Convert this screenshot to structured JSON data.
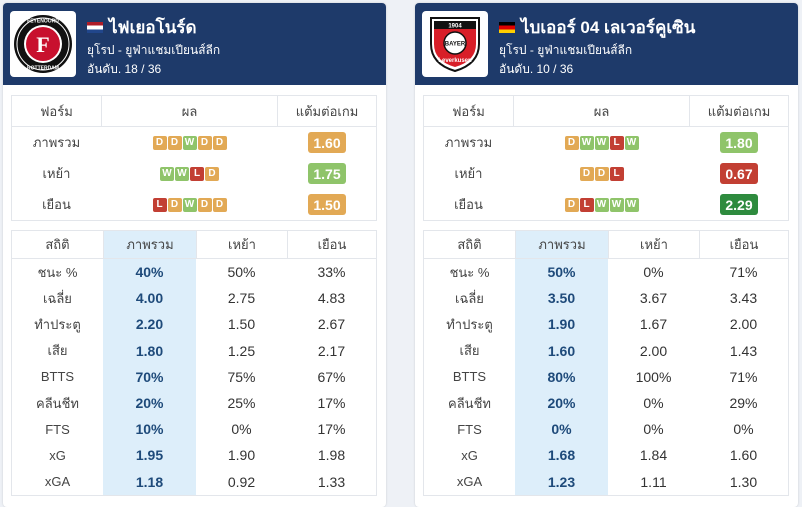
{
  "colors": {
    "header_bg": "#1e3a6a",
    "form_D": "#e2a955",
    "form_W": "#8fc46a",
    "form_L": "#c23f33",
    "ppg_yellow": "#e2a955",
    "ppg_green": "#8fc46a",
    "ppg_red": "#c23f33",
    "ppg_darkgreen": "#2e8b3e",
    "overall_highlight": "#ddeefa"
  },
  "teams": [
    {
      "name": "ไฟเยอโนร์ด",
      "flag": "netherlands-flag",
      "league": "ยุโรป - ยูฟ่าแชมเปียนส์ลีก",
      "rank": "อันดับ. 18 / 36",
      "logo": {
        "name": "feyenoord-logo",
        "initial": "F",
        "ring_text_top": "FEYENOORD",
        "ring_text_bottom": "ROTTERDAM"
      },
      "form_headers": [
        "ฟอร์ม",
        "ผล",
        "แต้มต่อเกม"
      ],
      "form_rows": [
        {
          "label": "ภาพรวม",
          "results": [
            "D",
            "D",
            "W",
            "D",
            "D"
          ],
          "ppg": "1.60",
          "ppg_color": "#e2a955"
        },
        {
          "label": "เหย้า",
          "results": [
            "W",
            "W",
            "L",
            "D"
          ],
          "ppg": "1.75",
          "ppg_color": "#8fc46a"
        },
        {
          "label": "เยือน",
          "results": [
            "L",
            "D",
            "W",
            "D",
            "D"
          ],
          "ppg": "1.50",
          "ppg_color": "#e2a955"
        }
      ],
      "stats_headers": [
        "สถิติ",
        "ภาพรวม",
        "เหย้า",
        "เยือน"
      ],
      "stats_rows": [
        {
          "label": "ชนะ %",
          "overall": "40%",
          "home": "50%",
          "away": "33%"
        },
        {
          "label": "เฉลี่ย",
          "overall": "4.00",
          "home": "2.75",
          "away": "4.83"
        },
        {
          "label": "ทำประตู",
          "overall": "2.20",
          "home": "1.50",
          "away": "2.67"
        },
        {
          "label": "เสีย",
          "overall": "1.80",
          "home": "1.25",
          "away": "2.17"
        },
        {
          "label": "BTTS",
          "overall": "70%",
          "home": "75%",
          "away": "67%"
        },
        {
          "label": "คลีนชีท",
          "overall": "20%",
          "home": "25%",
          "away": "17%"
        },
        {
          "label": "FTS",
          "overall": "10%",
          "home": "0%",
          "away": "17%"
        },
        {
          "label": "xG",
          "overall": "1.95",
          "home": "1.90",
          "away": "1.98"
        },
        {
          "label": "xGA",
          "overall": "1.18",
          "home": "0.92",
          "away": "1.33"
        }
      ]
    },
    {
      "name": "ไบเออร์ 04 เลเวอร์คูเซิน",
      "flag": "germany-flag",
      "league": "ยุโรป - ยูฟ่าแชมเปียนส์ลีก",
      "rank": "อันดับ. 10 / 36",
      "logo": {
        "name": "bayer-leverkusen-logo",
        "top_text": "1904",
        "center_text": "BAYER",
        "bottom_text": "Leverkusen"
      },
      "form_headers": [
        "ฟอร์ม",
        "ผล",
        "แต้มต่อเกม"
      ],
      "form_rows": [
        {
          "label": "ภาพรวม",
          "results": [
            "D",
            "W",
            "W",
            "L",
            "W"
          ],
          "ppg": "1.80",
          "ppg_color": "#8fc46a"
        },
        {
          "label": "เหย้า",
          "results": [
            "D",
            "D",
            "L"
          ],
          "ppg": "0.67",
          "ppg_color": "#c23f33"
        },
        {
          "label": "เยือน",
          "results": [
            "D",
            "L",
            "W",
            "W",
            "W"
          ],
          "ppg": "2.29",
          "ppg_color": "#2e8b3e"
        }
      ],
      "stats_headers": [
        "สถิติ",
        "ภาพรวม",
        "เหย้า",
        "เยือน"
      ],
      "stats_rows": [
        {
          "label": "ชนะ %",
          "overall": "50%",
          "home": "0%",
          "away": "71%"
        },
        {
          "label": "เฉลี่ย",
          "overall": "3.50",
          "home": "3.67",
          "away": "3.43"
        },
        {
          "label": "ทำประตู",
          "overall": "1.90",
          "home": "1.67",
          "away": "2.00"
        },
        {
          "label": "เสีย",
          "overall": "1.60",
          "home": "2.00",
          "away": "1.43"
        },
        {
          "label": "BTTS",
          "overall": "80%",
          "home": "100%",
          "away": "71%"
        },
        {
          "label": "คลีนชีท",
          "overall": "20%",
          "home": "0%",
          "away": "29%"
        },
        {
          "label": "FTS",
          "overall": "0%",
          "home": "0%",
          "away": "0%"
        },
        {
          "label": "xG",
          "overall": "1.68",
          "home": "1.84",
          "away": "1.60"
        },
        {
          "label": "xGA",
          "overall": "1.23",
          "home": "1.11",
          "away": "1.30"
        }
      ]
    }
  ]
}
